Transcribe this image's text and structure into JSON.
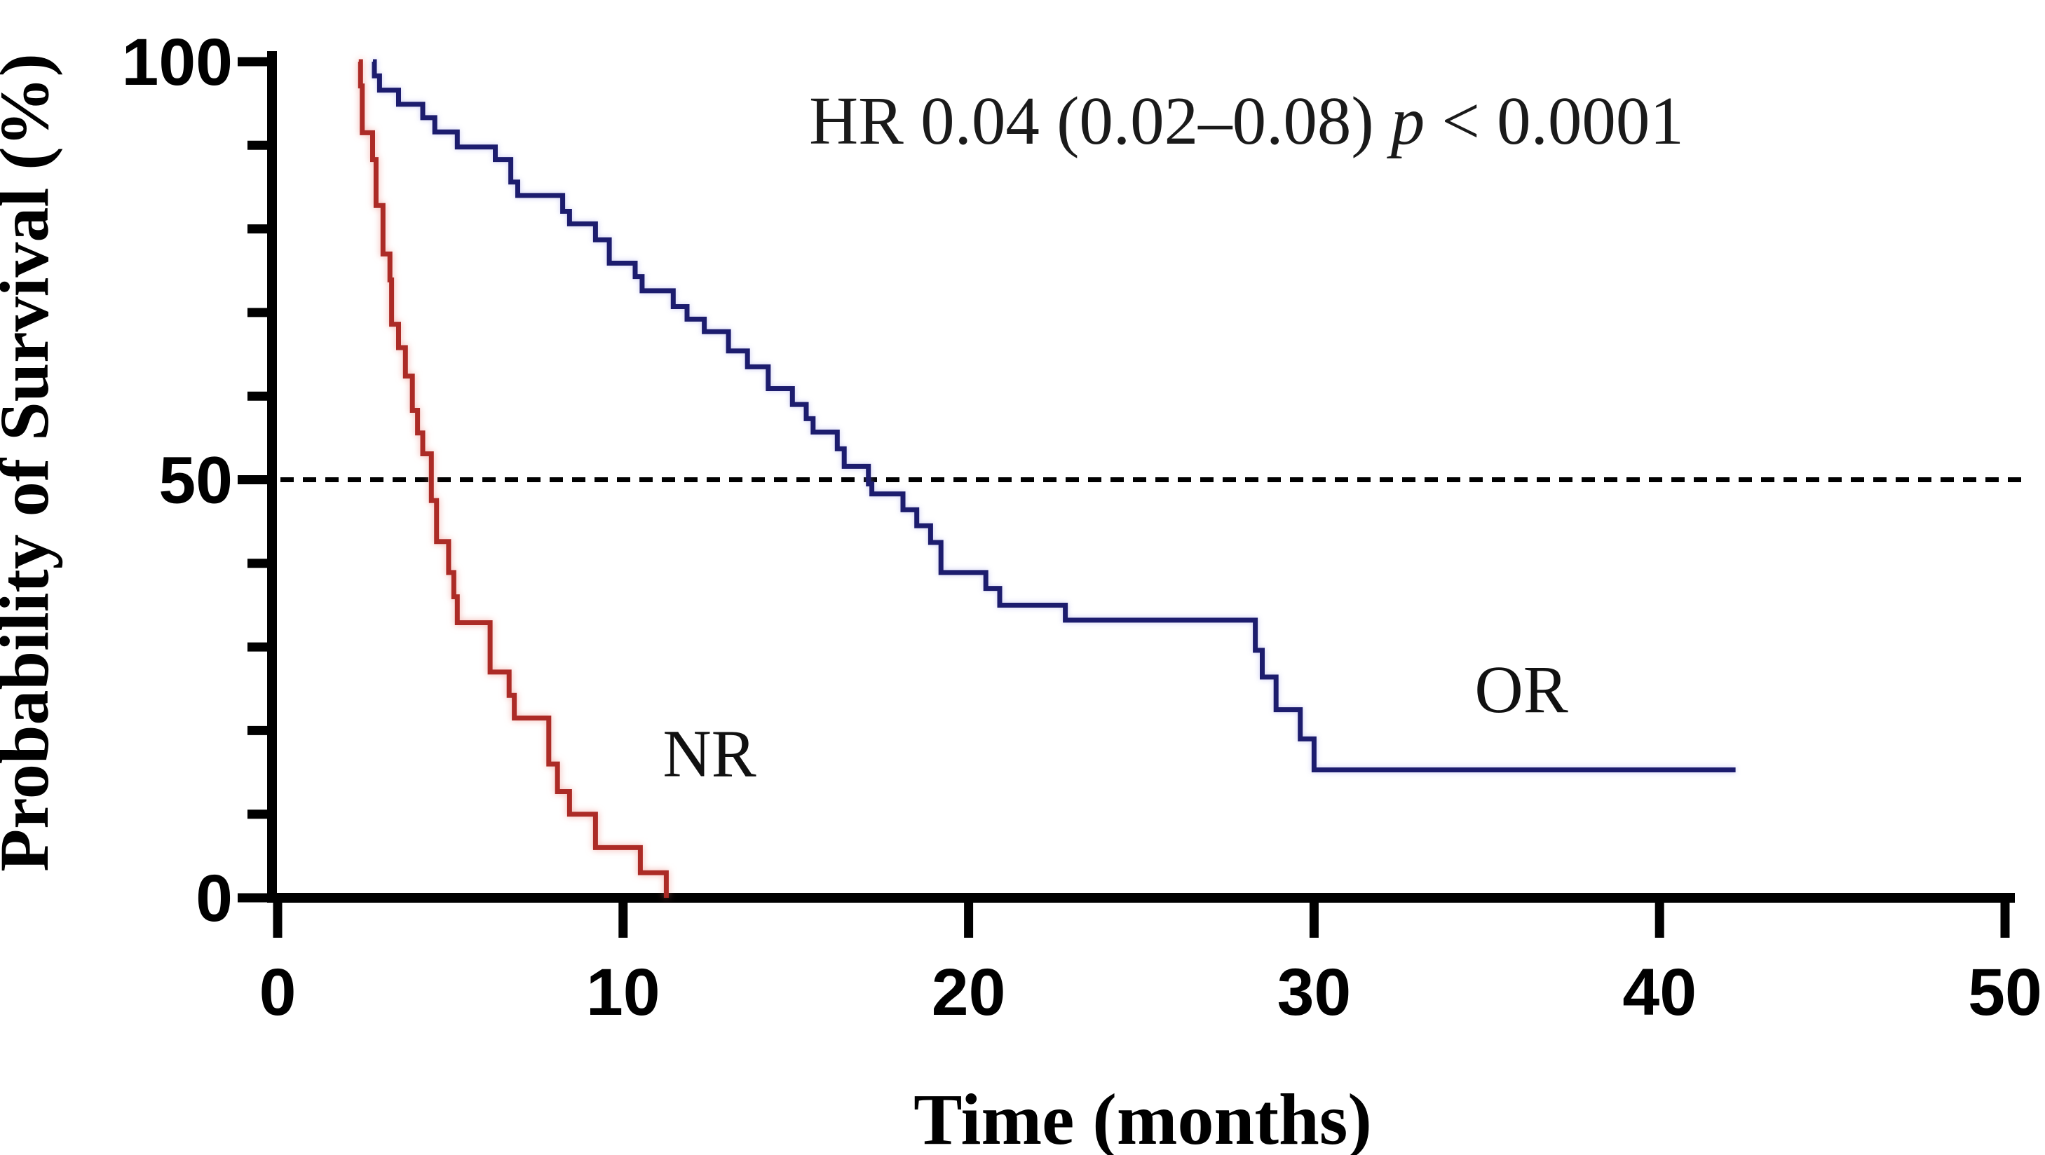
{
  "figure": {
    "background": "#ffffff",
    "annotation": {
      "hr_text": "HR 0.04 (0.02–0.08)",
      "p_label": "p",
      "p_value": "< 0.0001"
    }
  },
  "chart_data": {
    "type": "line",
    "subtype": "kaplan_meier_step_survival",
    "title": "",
    "xlabel": "Time (months)",
    "ylabel": "Probability of Survival (%)",
    "xlim": [
      0,
      50
    ],
    "ylim": [
      0,
      100
    ],
    "x_ticks": [
      0,
      10,
      20,
      30,
      40,
      50
    ],
    "y_major_ticks": [
      0,
      50,
      100
    ],
    "y_minor_ticks": [
      10,
      20,
      30,
      40,
      60,
      70,
      80,
      90
    ],
    "grid": false,
    "legend_position": "inline-curve-labels",
    "reference_line": {
      "y": 50,
      "style": "dashed",
      "color": "#000000"
    },
    "annotation": "HR 0.04 (0.02–0.08) p < 0.0001",
    "annotation_position": {
      "x": 28.0,
      "y": 90.5
    },
    "series": [
      {
        "name": "NR",
        "color": "#AC2B26",
        "label_position": {
          "x": 12.5,
          "y": 17.3
        },
        "start": [
          2.35,
          100
        ],
        "steps": [
          [
            2.4,
            97.1
          ],
          [
            2.45,
            91.5
          ],
          [
            2.75,
            88.3
          ],
          [
            2.85,
            82.8
          ],
          [
            3.05,
            77.0
          ],
          [
            3.25,
            73.9
          ],
          [
            3.3,
            68.6
          ],
          [
            3.5,
            65.8
          ],
          [
            3.7,
            62.4
          ],
          [
            3.9,
            58.3
          ],
          [
            4.05,
            55.6
          ],
          [
            4.2,
            53.1
          ],
          [
            4.45,
            47.5
          ],
          [
            4.6,
            42.6
          ],
          [
            4.95,
            38.9
          ],
          [
            5.1,
            36.0
          ],
          [
            5.2,
            32.9
          ],
          [
            6.15,
            27.0
          ],
          [
            6.7,
            24.2
          ],
          [
            6.85,
            21.5
          ],
          [
            7.85,
            16.0
          ],
          [
            8.1,
            12.7
          ],
          [
            8.45,
            10.0
          ],
          [
            9.2,
            6.0
          ],
          [
            10.5,
            3.0
          ],
          [
            11.25,
            0
          ]
        ],
        "end": [
          11.25,
          0
        ]
      },
      {
        "name": "OR",
        "color": "#1C1C6E",
        "label_position": {
          "x": 36.0,
          "y": 25.0
        },
        "start": [
          2.76,
          100
        ],
        "steps": [
          [
            2.8,
            98.3
          ],
          [
            2.95,
            96.6
          ],
          [
            3.5,
            94.9
          ],
          [
            4.2,
            93.3
          ],
          [
            4.55,
            91.6
          ],
          [
            5.2,
            89.8
          ],
          [
            6.3,
            88.3
          ],
          [
            6.75,
            85.6
          ],
          [
            6.95,
            84.0
          ],
          [
            8.25,
            82.1
          ],
          [
            8.45,
            80.6
          ],
          [
            9.2,
            78.7
          ],
          [
            9.6,
            75.9
          ],
          [
            10.35,
            74.3
          ],
          [
            10.55,
            72.6
          ],
          [
            11.45,
            70.7
          ],
          [
            11.85,
            69.2
          ],
          [
            12.35,
            67.7
          ],
          [
            13.05,
            65.4
          ],
          [
            13.6,
            63.5
          ],
          [
            14.2,
            60.9
          ],
          [
            14.9,
            59.0
          ],
          [
            15.3,
            57.3
          ],
          [
            15.5,
            55.7
          ],
          [
            16.2,
            53.7
          ],
          [
            16.4,
            51.6
          ],
          [
            17.1,
            49.5
          ],
          [
            17.2,
            48.3
          ],
          [
            18.1,
            46.4
          ],
          [
            18.5,
            44.5
          ],
          [
            18.9,
            42.5
          ],
          [
            19.2,
            38.9
          ],
          [
            20.5,
            37.0
          ],
          [
            20.9,
            35.0
          ],
          [
            22.8,
            33.2
          ],
          [
            28.3,
            29.6
          ],
          [
            28.5,
            26.4
          ],
          [
            28.9,
            22.5
          ],
          [
            29.6,
            19.0
          ],
          [
            30.0,
            15.3
          ]
        ],
        "end": [
          42.2,
          15.3
        ]
      }
    ]
  }
}
